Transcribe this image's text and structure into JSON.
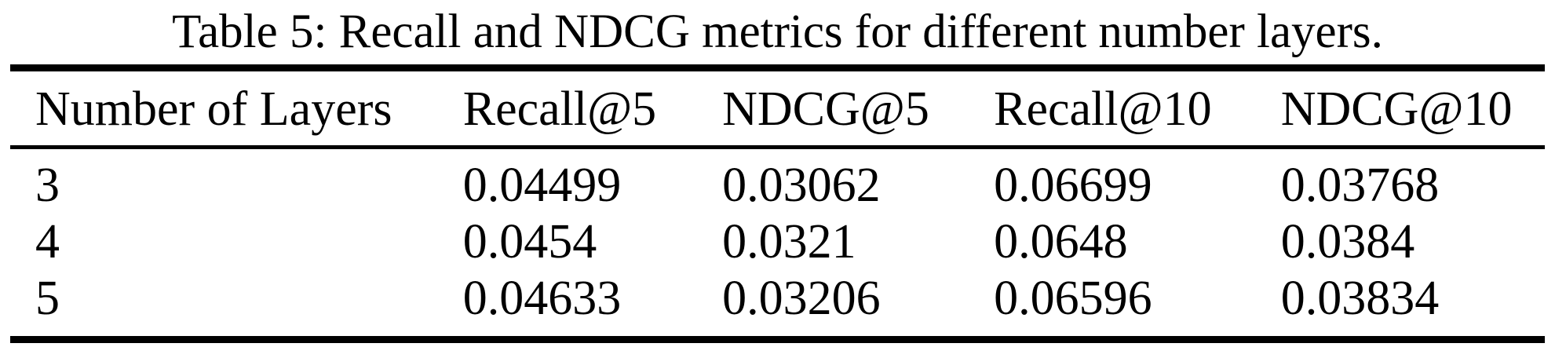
{
  "caption": "Table 5: Recall and NDCG metrics for different number layers.",
  "table": {
    "columns": [
      "Number of Layers",
      "Recall@5",
      "NDCG@5",
      "Recall@10",
      "NDCG@10"
    ],
    "rows": [
      {
        "layers": "3",
        "recall5": "0.04499",
        "ndcg5": "0.03062",
        "recall10": "0.06699",
        "ndcg10": "0.03768"
      },
      {
        "layers": "4",
        "recall5": "0.0454",
        "ndcg5": "0.0321",
        "recall10": "0.0648",
        "ndcg10": "0.0384"
      },
      {
        "layers": "5",
        "recall5": "0.04633",
        "ndcg5": "0.03206",
        "recall10": "0.06596",
        "ndcg10": "0.03834"
      }
    ]
  },
  "chart_data": {
    "type": "table",
    "title": "Table 5: Recall and NDCG metrics for different number layers.",
    "categories": [
      "3",
      "4",
      "5"
    ],
    "series": [
      {
        "name": "Recall@5",
        "values": [
          0.04499,
          0.0454,
          0.04633
        ]
      },
      {
        "name": "NDCG@5",
        "values": [
          0.03062,
          0.0321,
          0.03206
        ]
      },
      {
        "name": "Recall@10",
        "values": [
          0.06699,
          0.0648,
          0.06596
        ]
      },
      {
        "name": "NDCG@10",
        "values": [
          0.03768,
          0.0384,
          0.03834
        ]
      }
    ]
  },
  "colors": {
    "text": "#000000",
    "background": "#ffffff",
    "rule": "#000000"
  }
}
